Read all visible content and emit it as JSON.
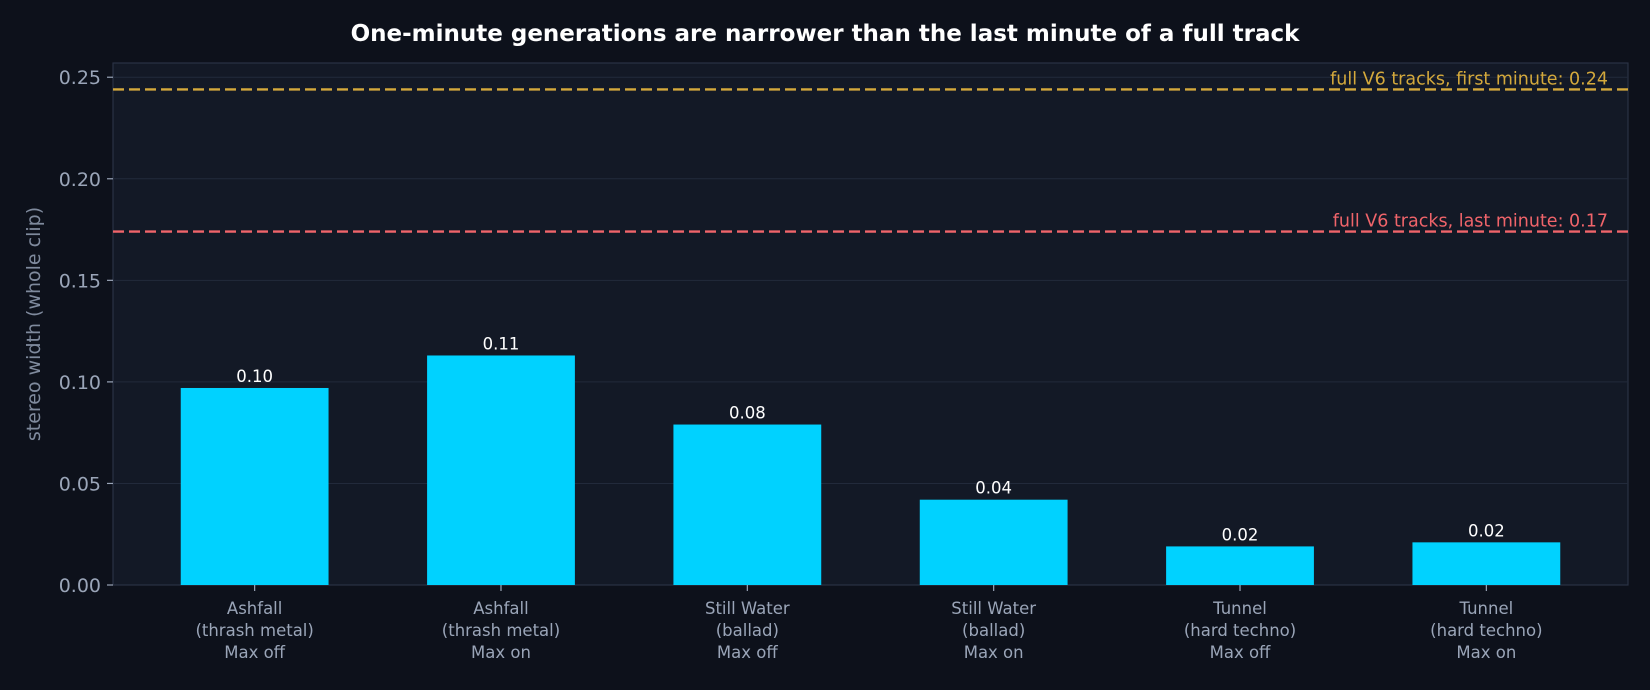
{
  "chart_data": {
    "type": "bar",
    "title": "One-minute generations are narrower than the last minute of a full track",
    "xlabel": "",
    "ylabel": "stereo width (whole clip)",
    "ylim": [
      0,
      0.257
    ],
    "yticks": [
      "0.00",
      "0.05",
      "0.10",
      "0.15",
      "0.20",
      "0.25"
    ],
    "categories": [
      [
        "Ashfall",
        "(thrash metal)",
        "Max off"
      ],
      [
        "Ashfall",
        "(thrash metal)",
        "Max on"
      ],
      [
        "Still Water",
        "(ballad)",
        "Max off"
      ],
      [
        "Still Water",
        "(ballad)",
        "Max on"
      ],
      [
        "Tunnel",
        "(hard techno)",
        "Max off"
      ],
      [
        "Tunnel",
        "(hard techno)",
        "Max on"
      ]
    ],
    "values": [
      0.097,
      0.113,
      0.079,
      0.042,
      0.019,
      0.021
    ],
    "value_labels": [
      "0.10",
      "0.11",
      "0.08",
      "0.04",
      "0.02",
      "0.02"
    ],
    "reference_lines": [
      {
        "value": 0.244,
        "label": "full V6 tracks, first minute: 0.24",
        "color": "#d4a93c"
      },
      {
        "value": 0.174,
        "label": "full V6 tracks, last minute: 0.17",
        "color": "#f0646a"
      }
    ],
    "grid": true,
    "bar_color": "#00d2ff",
    "background_color": "#131926",
    "page_color": "#0d111b"
  }
}
